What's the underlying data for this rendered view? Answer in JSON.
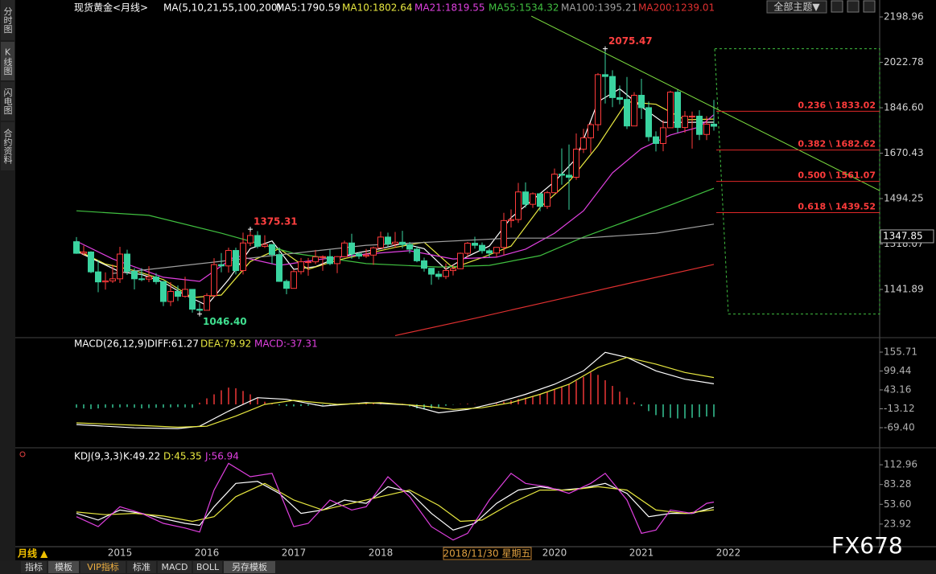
{
  "ui": {
    "sidebar": [
      "分时图",
      "K线图",
      "闪电图",
      "合约资料"
    ],
    "theme_button": "全部主题▼",
    "period": "月线 ▲",
    "cursor_date": "2018/11/30 星期五",
    "tabs": [
      "指标",
      "模板",
      "VIP指标",
      "标准",
      "MACD",
      "BOLL",
      "另存模板"
    ],
    "watermark": "FX678"
  },
  "chart_data": [
    {
      "type": "candlestick",
      "title": "现货黄金<月线>",
      "subtitle": "MA(5,10,21,55,100,200)",
      "categories": [
        null,
        null,
        null,
        null,
        null,
        null,
        "2015",
        null,
        null,
        null,
        null,
        null,
        null,
        null,
        null,
        null,
        null,
        null,
        "2016",
        null,
        null,
        null,
        null,
        null,
        null,
        null,
        null,
        null,
        null,
        null,
        "2017",
        null,
        null,
        null,
        null,
        null,
        null,
        null,
        null,
        null,
        null,
        null,
        "2018",
        null,
        null,
        null,
        null,
        null,
        null,
        null,
        null,
        null,
        null,
        null,
        null,
        null,
        null,
        null,
        null,
        null,
        null,
        null,
        null,
        null,
        null,
        null,
        "2020",
        null,
        null,
        null,
        null,
        null,
        null,
        null,
        null,
        null,
        null,
        null,
        "2021",
        null,
        null,
        null,
        null,
        null,
        null,
        null,
        null,
        null,
        null,
        null,
        "2022"
      ],
      "open": [
        1327,
        1282,
        1287,
        1210,
        1171,
        1175,
        1183,
        1279,
        1212,
        1183,
        1182,
        1190,
        1172,
        1095,
        1134,
        1115,
        1142,
        1065,
        1061,
        1118,
        1238,
        1233,
        1293,
        1215,
        1322,
        1351,
        1309,
        1316,
        1277,
        1173,
        1146,
        1211,
        1249,
        1249,
        1268,
        1269,
        1242,
        1269,
        1322,
        1280,
        1271,
        1275,
        1303,
        1345,
        1318,
        1325,
        1316,
        1298,
        1253,
        1224,
        1201,
        1192,
        1215,
        1222,
        1282,
        1321,
        1313,
        1292,
        1283,
        1305,
        1409,
        1413,
        1520,
        1472,
        1513,
        1464,
        1517,
        1589,
        1585,
        1577,
        1686,
        1730,
        1781,
        1975,
        1968,
        1886,
        1879,
        1776,
        1895,
        1847,
        1734,
        1708,
        1769,
        1907,
        1770,
        1814,
        1814,
        1743,
        1783,
        null,
        null
      ],
      "high": [
        1345,
        1312,
        1290,
        1255,
        1208,
        1238,
        1307,
        1296,
        1224,
        1224,
        1232,
        1205,
        1175,
        1170,
        1157,
        1191,
        1143,
        1088,
        1127,
        1263,
        1283,
        1304,
        1304,
        1362,
        1375.31,
        1368,
        1352,
        1317,
        1305,
        1180,
        1220,
        1264,
        1264,
        1295,
        1274,
        1296,
        1271,
        1331,
        1358,
        1286,
        1299,
        1308,
        1366,
        1362,
        1365,
        1369,
        1326,
        1309,
        1265,
        1218,
        1214,
        1243,
        1237,
        1285,
        1326,
        1346,
        1324,
        1300,
        1306,
        1439,
        1452,
        1555,
        1557,
        1518,
        1517,
        1524,
        1611,
        1689,
        1704,
        1747,
        1765,
        1789,
        1981,
        2075.47,
        1992,
        1933,
        1966,
        1907,
        1959,
        1871,
        1755,
        1798,
        1913,
        1917,
        1834,
        1832,
        1837,
        1814,
        1877,
        null,
        null
      ],
      "low": [
        1280,
        1273,
        1205,
        1131,
        1141,
        1167,
        1167,
        1198,
        1142,
        1174,
        1170,
        1162,
        1077,
        1077,
        1097,
        1110,
        1052,
        1046.4,
        1061,
        1111,
        1208,
        1207,
        1200,
        1200,
        1310,
        1301,
        1303,
        1241,
        1171,
        1123,
        1146,
        1200,
        1195,
        1240,
        1214,
        1236,
        1205,
        1266,
        1261,
        1260,
        1264,
        1237,
        1302,
        1307,
        1303,
        1301,
        1282,
        1247,
        1211,
        1160,
        1180,
        1182,
        1196,
        1221,
        1266,
        1300,
        1281,
        1266,
        1267,
        1274,
        1382,
        1400,
        1459,
        1458,
        1445,
        1454,
        1517,
        1548,
        1451,
        1567,
        1671,
        1670,
        1757,
        1863,
        1849,
        1860,
        1764,
        1775,
        1803,
        1717,
        1677,
        1678,
        1769,
        1750,
        1750,
        1688,
        1721,
        1721,
        1758,
        null,
        null
      ],
      "close": [
        1282,
        1287,
        1210,
        1171,
        1175,
        1183,
        1279,
        1212,
        1183,
        1182,
        1190,
        1172,
        1095,
        1134,
        1115,
        1142,
        1065,
        1061,
        1118,
        1238,
        1233,
        1293,
        1215,
        1322,
        1351,
        1309,
        1316,
        1277,
        1173,
        1146,
        1211,
        1249,
        1249,
        1268,
        1269,
        1242,
        1269,
        1322,
        1280,
        1271,
        1275,
        1303,
        1345,
        1318,
        1325,
        1316,
        1298,
        1253,
        1224,
        1201,
        1192,
        1215,
        1222,
        1282,
        1321,
        1313,
        1292,
        1283,
        1305,
        1409,
        1413,
        1520,
        1472,
        1513,
        1464,
        1517,
        1589,
        1585,
        1577,
        1686,
        1730,
        1781,
        1975,
        1968,
        1886,
        1879,
        1776,
        1895,
        1847,
        1734,
        1708,
        1769,
        1907,
        1770,
        1814,
        1814,
        1743,
        1783,
        1775,
        null,
        null
      ],
      "up_color": "#ff3b3b",
      "down_color": "#3ad4a0",
      "ylim": [
        961,
        2249
      ],
      "yticks": [
        2198.96,
        2022.78,
        {
          "value": 1846.6,
          "label": "1846.60"
        },
        1670.43,
        1494.25,
        1318.07,
        1141.89
      ],
      "series": [
        {
          "name": "MA5",
          "legend": "MA5:1790.59",
          "color": "#ffffff",
          "x": [
            0,
            3,
            6,
            9,
            12,
            15,
            18,
            21,
            24,
            27,
            30,
            33,
            36,
            39,
            42,
            45,
            48,
            51,
            54,
            57,
            60,
            63,
            66,
            69,
            72,
            75,
            78,
            81,
            84,
            88
          ],
          "values": [
            1290,
            1250,
            1210,
            1200,
            1170,
            1120,
            1080,
            1180,
            1300,
            1330,
            1220,
            1230,
            1265,
            1285,
            1300,
            1320,
            1300,
            1220,
            1270,
            1310,
            1420,
            1490,
            1560,
            1650,
            1870,
            1920,
            1850,
            1790,
            1790,
            1790.59
          ]
        },
        {
          "name": "MA10",
          "legend": "MA10:1802.64",
          "color": "#e8e840",
          "x": [
            0,
            4,
            8,
            12,
            16,
            20,
            24,
            28,
            32,
            36,
            40,
            44,
            48,
            52,
            56,
            60,
            64,
            68,
            72,
            76,
            80,
            84,
            88
          ],
          "values": [
            1295,
            1240,
            1215,
            1180,
            1110,
            1120,
            1250,
            1300,
            1220,
            1255,
            1280,
            1305,
            1325,
            1225,
            1265,
            1310,
            1460,
            1560,
            1700,
            1870,
            1860,
            1800,
            1802.64
          ]
        },
        {
          "name": "MA21",
          "legend": "MA21:1819.55",
          "color": "#e040e0",
          "x": [
            0,
            5,
            12,
            17,
            22,
            28,
            34,
            40,
            46,
            52,
            58,
            62,
            66,
            70,
            74,
            78,
            82,
            86,
            88
          ],
          "values": [
            1329,
            1260,
            1189,
            1173,
            1273,
            1235,
            1260,
            1279,
            1292,
            1260,
            1267,
            1298,
            1360,
            1447,
            1594,
            1688,
            1741,
            1772,
            1819.55
          ]
        },
        {
          "name": "MA55",
          "legend": "MA55:1534.32",
          "color": "#40c040",
          "x": [
            0,
            10,
            20,
            30,
            40,
            50,
            57,
            64,
            70,
            76,
            82,
            88
          ],
          "values": [
            1447,
            1429,
            1360,
            1282,
            1242,
            1229,
            1235,
            1273,
            1345,
            1407,
            1469,
            1534.32
          ]
        },
        {
          "name": "MA100",
          "legend": "MA100:1395.21",
          "color": "#a0a0a0",
          "x": [
            5,
            20,
            40,
            60,
            70,
            80,
            88
          ],
          "values": [
            1204,
            1251,
            1313,
            1341,
            1341,
            1360,
            1395.21
          ]
        },
        {
          "name": "MA200",
          "legend": "MA200:1239.01",
          "color": "#e03030",
          "x": [
            44,
            55,
            66,
            77,
            88
          ],
          "values": [
            963,
            1030,
            1100,
            1170,
            1239.01
          ]
        }
      ],
      "annotations": [
        {
          "x": 17,
          "value": 1046.4,
          "label": "1046.40",
          "color": "#40e090"
        },
        {
          "x": 24,
          "value": 1375.31,
          "label": "1375.31",
          "color": "#ff4040"
        },
        {
          "x": 73,
          "value": 2075.47,
          "label": "2075.47",
          "color": "#ff4040"
        }
      ],
      "fib_levels": [
        {
          "ratio": 0.236,
          "value": 1833.02,
          "label": "0.236 \\ 1833.02"
        },
        {
          "ratio": 0.382,
          "value": 1682.62,
          "label": "0.382 \\ 1682.62"
        },
        {
          "ratio": 0.5,
          "value": 1561.07,
          "label": "0.500 \\ 1561.07"
        },
        {
          "ratio": 0.618,
          "value": 1439.52,
          "label": "0.618 \\ 1439.52"
        }
      ],
      "trendline": {
        "x": [
          62.8,
          110.9
        ],
        "values": [
          2202,
          1525
        ]
      },
      "cursor_price": 1347.85
    },
    {
      "type": "macd",
      "title": "MACD(26,12,9)",
      "ylim": [
        -126.9,
        198.8
      ],
      "yticks": [
        155.71,
        99.44,
        43.16,
        -13.12,
        {
          "value": -69.4,
          "label": "-69.40"
        }
      ],
      "histogram": {
        "name": "MACD",
        "legend": "MACD:-37.31",
        "up_color": "#ff3b3b",
        "down_color": "#3ad4a0",
        "values": [
          -10,
          -12,
          -14,
          -12,
          -10,
          -10,
          -9,
          -8,
          -10,
          -12,
          -11,
          -10,
          -10,
          -9,
          -8,
          -9,
          -10,
          5,
          18,
          30,
          42,
          50,
          48,
          40,
          30,
          18,
          8,
          2,
          -3,
          -5,
          -6,
          -5,
          -4,
          -3,
          -2,
          -1,
          0,
          1,
          2,
          3,
          4,
          5,
          6,
          5,
          3,
          2,
          -6,
          -12,
          -15,
          -12,
          -8,
          -4,
          -1,
          1,
          2,
          1,
          0,
          2,
          3,
          8,
          12,
          16,
          20,
          25,
          30,
          36,
          44,
          52,
          60,
          70,
          82,
          95,
          88,
          72,
          55,
          38,
          20,
          6,
          -5,
          -20,
          -32,
          -38,
          -40,
          -42,
          -42,
          -40,
          -38,
          -36,
          -37.31
        ]
      },
      "series": [
        {
          "name": "DIFF",
          "legend": "DIFF:61.27",
          "color": "#ffffff",
          "x": [
            0,
            8,
            14,
            17,
            21,
            25,
            29,
            34,
            40,
            46,
            50,
            54,
            58,
            62,
            66,
            70,
            73,
            76,
            80,
            84,
            88
          ],
          "values": [
            -60,
            -70,
            -72,
            -65,
            -20,
            20,
            15,
            -5,
            5,
            -2,
            -25,
            -15,
            5,
            30,
            60,
            100,
            155,
            140,
            100,
            75,
            61.27
          ]
        },
        {
          "name": "DEA",
          "legend": "DEA:79.92",
          "color": "#e8e840",
          "x": [
            0,
            8,
            14,
            18,
            22,
            26,
            30,
            36,
            42,
            48,
            52,
            56,
            60,
            64,
            68,
            72,
            76,
            80,
            84,
            88
          ],
          "values": [
            -55,
            -62,
            -68,
            -65,
            -35,
            0,
            12,
            0,
            5,
            -5,
            -15,
            -10,
            5,
            30,
            60,
            110,
            140,
            120,
            95,
            79.92
          ]
        }
      ]
    },
    {
      "type": "line",
      "title": "KDJ(9,3,3)",
      "ylim": [
        -10,
        134.8
      ],
      "yticks": [
        112.96,
        83.28,
        {
          "value": 53.6,
          "label": "53.60"
        },
        23.92
      ],
      "series": [
        {
          "name": "K",
          "legend": "K:49.22",
          "color": "#ffffff",
          "x": [
            0,
            3,
            6,
            9,
            12,
            15,
            17,
            19,
            22,
            25,
            28,
            31,
            34,
            37,
            40,
            43,
            46,
            49,
            52,
            55,
            58,
            61,
            64,
            67,
            70,
            73,
            76,
            79,
            82,
            85,
            88
          ],
          "values": [
            40,
            30,
            45,
            40,
            32,
            25,
            22,
            50,
            85,
            88,
            70,
            40,
            45,
            60,
            55,
            80,
            72,
            40,
            15,
            25,
            55,
            75,
            80,
            75,
            78,
            85,
            70,
            35,
            40,
            40,
            49.22
          ]
        },
        {
          "name": "D",
          "legend": "D:45.35",
          "color": "#e8e840",
          "x": [
            0,
            4,
            8,
            12,
            16,
            19,
            22,
            26,
            30,
            34,
            38,
            42,
            46,
            50,
            53,
            56,
            60,
            64,
            68,
            72,
            76,
            80,
            84,
            88
          ],
          "values": [
            42,
            38,
            40,
            36,
            28,
            35,
            65,
            85,
            60,
            45,
            55,
            65,
            75,
            52,
            28,
            30,
            55,
            75,
            75,
            80,
            75,
            45,
            40,
            45.35
          ]
        },
        {
          "name": "J",
          "legend": "J:56.94",
          "color": "#e040e0",
          "x": [
            0,
            3,
            6,
            9,
            12,
            15,
            17,
            19,
            21,
            24,
            27,
            30,
            32,
            35,
            38,
            40,
            43,
            46,
            49,
            52,
            54,
            57,
            60,
            62,
            65,
            68,
            71,
            73,
            76,
            78,
            80,
            82,
            85,
            87,
            88
          ],
          "values": [
            35,
            20,
            50,
            40,
            25,
            18,
            12,
            75,
            115,
            95,
            100,
            20,
            25,
            60,
            45,
            50,
            95,
            65,
            20,
            0,
            10,
            60,
            100,
            85,
            80,
            70,
            85,
            100,
            60,
            10,
            15,
            45,
            40,
            55,
            56.94
          ]
        }
      ]
    }
  ]
}
